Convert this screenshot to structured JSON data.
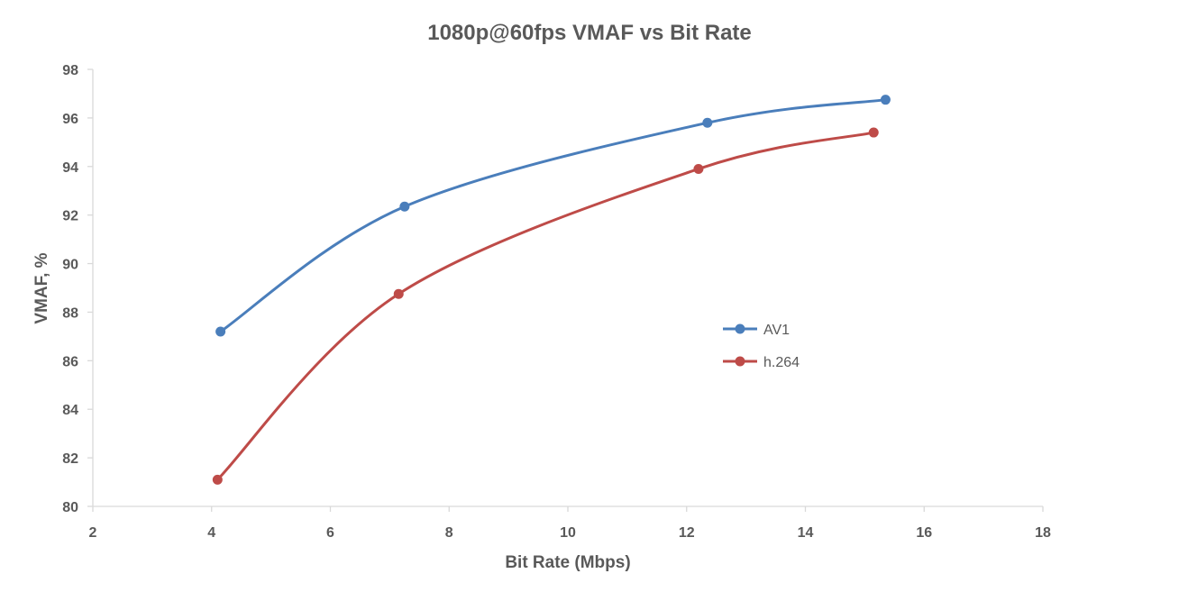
{
  "chart_data": {
    "type": "line",
    "title": "1080p@60fps VMAF vs Bit Rate",
    "xlabel": "Bit Rate (Mbps)",
    "ylabel": "VMAF, %",
    "xlim": [
      2,
      18
    ],
    "ylim": [
      80,
      98
    ],
    "x_ticks": [
      2,
      4,
      6,
      8,
      10,
      12,
      14,
      16,
      18
    ],
    "y_ticks": [
      80,
      82,
      84,
      86,
      88,
      90,
      92,
      94,
      96,
      98
    ],
    "smooth": true,
    "grid": false,
    "legend_position": "center-right",
    "series": [
      {
        "name": "AV1",
        "color": "#4a7ebb",
        "x": [
          4.15,
          7.25,
          12.35,
          15.35
        ],
        "y": [
          87.2,
          92.35,
          95.8,
          96.75
        ]
      },
      {
        "name": "h.264",
        "color": "#be4b48",
        "x": [
          4.1,
          7.15,
          12.2,
          15.15
        ],
        "y": [
          81.1,
          88.75,
          93.9,
          95.4
        ]
      }
    ]
  }
}
